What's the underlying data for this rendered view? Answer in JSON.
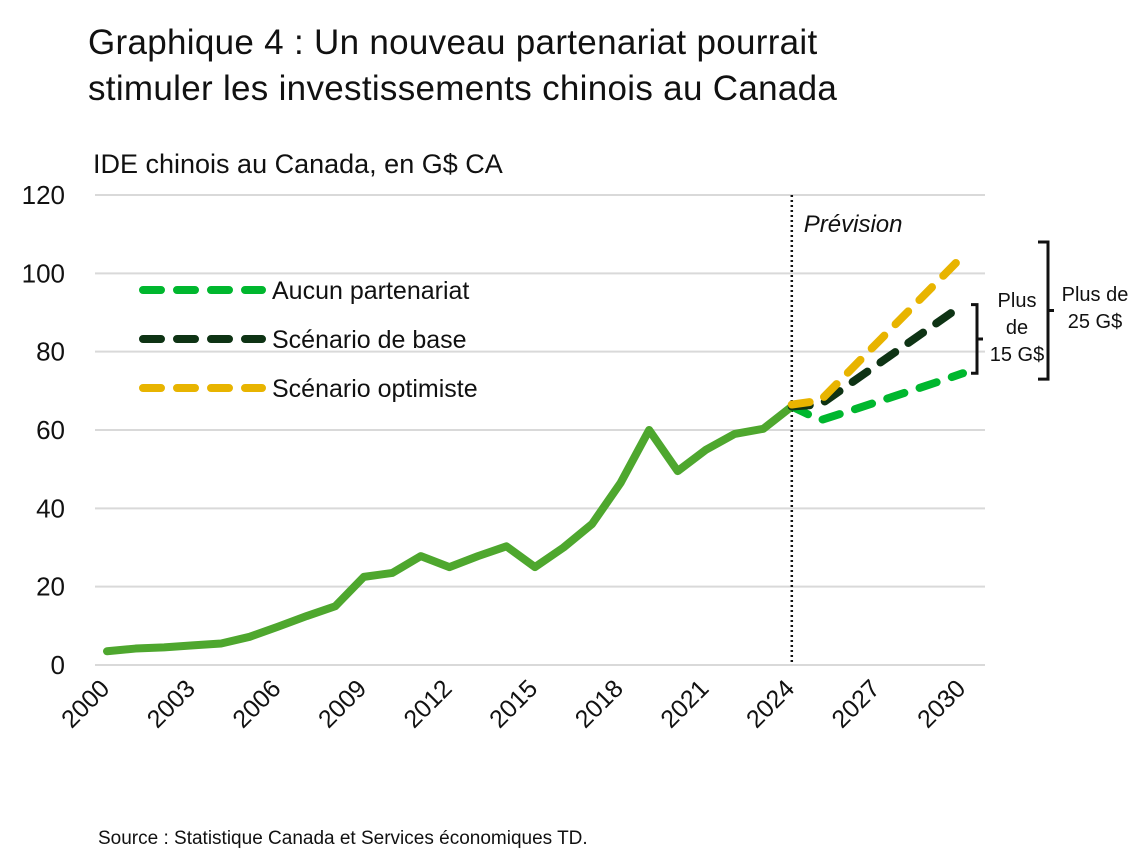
{
  "title_line1": "Graphique 4 : Un nouveau partenariat pourrait",
  "title_line2": "stimuler les investissements chinois au Canada",
  "source": "Source : Statistique Canada et Services économiques TD.",
  "chart_data": {
    "type": "line",
    "ylabel": "IDE chinois au Canada, en G$ CA",
    "ylim": [
      0,
      120
    ],
    "yticks": [
      0,
      20,
      40,
      60,
      80,
      100,
      120
    ],
    "xlim": [
      2000,
      2030
    ],
    "xticks": [
      2000,
      2003,
      2006,
      2009,
      2012,
      2015,
      2018,
      2021,
      2024,
      2027,
      2030
    ],
    "grid": true,
    "legend_position": "top-left",
    "forecast_marker": {
      "x": 2024,
      "label": "Prévision"
    },
    "series": [
      {
        "key": "historical",
        "color": "#4EA72E",
        "dashed": false,
        "x": [
          2000,
          2001,
          2002,
          2003,
          2004,
          2005,
          2006,
          2007,
          2008,
          2009,
          2010,
          2011,
          2012,
          2013,
          2014,
          2015,
          2016,
          2017,
          2018,
          2019,
          2020,
          2021,
          2022,
          2023,
          2024
        ],
        "values": [
          3.5,
          4.2,
          4.5,
          5,
          5.5,
          7.2,
          9.8,
          12.5,
          15,
          22.5,
          23.5,
          27.8,
          25,
          27.8,
          30.3,
          25,
          30,
          36,
          46.5,
          60,
          49.5,
          55,
          59,
          60.3,
          66
        ]
      },
      {
        "name": "Aucun partenariat",
        "color": "#00B72E",
        "dashed": true,
        "x": [
          2024,
          2025,
          2026,
          2027,
          2028,
          2029,
          2030
        ],
        "values": [
          66,
          62.5,
          64.8,
          67.2,
          69.6,
          72,
          74.5
        ]
      },
      {
        "name": "Scénario de base",
        "color": "#0E3314",
        "dashed": true,
        "x": [
          2024,
          2025,
          2026,
          2027,
          2028,
          2029,
          2030
        ],
        "values": [
          66,
          66.5,
          71.6,
          76.7,
          81.8,
          86.9,
          92
        ]
      },
      {
        "name": "Scénario optimiste",
        "color": "#E8B400",
        "dashed": true,
        "x": [
          2024,
          2025,
          2026,
          2027,
          2028,
          2029,
          2030
        ],
        "values": [
          66.5,
          67.5,
          74.9,
          82.3,
          89.7,
          97.1,
          104.5
        ]
      }
    ],
    "annotations": [
      {
        "text_lines": [
          "Plus",
          "de",
          "15 G$"
        ],
        "from": 74.5,
        "to": 92
      },
      {
        "text_lines": [
          "Plus de",
          "25 G$"
        ],
        "from": 73,
        "to": 108
      }
    ]
  }
}
